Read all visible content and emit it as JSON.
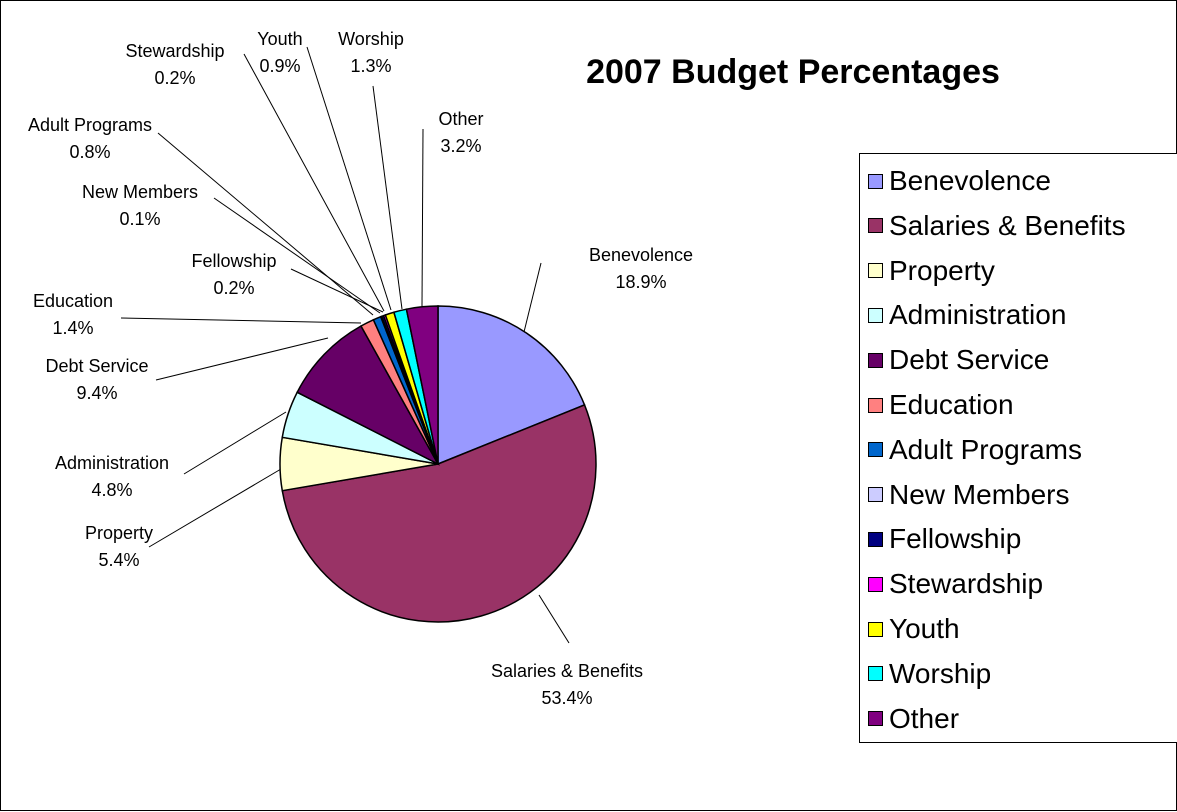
{
  "chart_data": {
    "type": "pie",
    "title": "2007 Budget Percentages",
    "slices": [
      {
        "label": "Benevolence",
        "value": 18.9,
        "text": "18.9%",
        "color": "#9999ff"
      },
      {
        "label": "Salaries & Benefits",
        "value": 53.4,
        "text": "53.4%",
        "color": "#993366"
      },
      {
        "label": "Property",
        "value": 5.4,
        "text": "5.4%",
        "color": "#ffffcc"
      },
      {
        "label": "Administration",
        "value": 4.8,
        "text": "4.8%",
        "color": "#ccffff"
      },
      {
        "label": "Debt Service",
        "value": 9.4,
        "text": "9.4%",
        "color": "#660066"
      },
      {
        "label": "Education",
        "value": 1.4,
        "text": "1.4%",
        "color": "#ff8080"
      },
      {
        "label": "Adult Programs",
        "value": 0.8,
        "text": "0.8%",
        "color": "#0066cc"
      },
      {
        "label": "New Members",
        "value": 0.1,
        "text": "0.1%",
        "color": "#ccccff"
      },
      {
        "label": "Fellowship",
        "value": 0.2,
        "text": "0.2%",
        "color": "#000080"
      },
      {
        "label": "Stewardship",
        "value": 0.2,
        "text": "0.2%",
        "color": "#ff00ff"
      },
      {
        "label": "Youth",
        "value": 0.9,
        "text": "0.9%",
        "color": "#ffff00"
      },
      {
        "label": "Worship",
        "value": 1.3,
        "text": "1.3%",
        "color": "#00ffff"
      },
      {
        "label": "Other",
        "value": 3.2,
        "text": "3.2%",
        "color": "#800080"
      }
    ],
    "legend_position": "right"
  }
}
